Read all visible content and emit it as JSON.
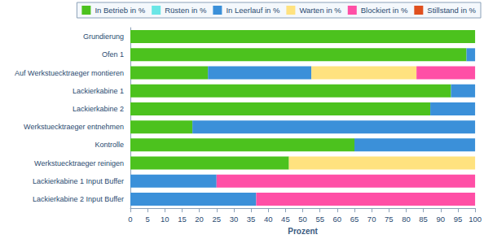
{
  "chart_data": {
    "type": "bar",
    "orientation": "horizontal",
    "stacked": true,
    "grid": false,
    "legend": "top",
    "xlabel": "Prozent",
    "xlim": [
      0,
      100
    ],
    "xticks": [
      0,
      5,
      10,
      15,
      20,
      25,
      30,
      35,
      40,
      45,
      50,
      55,
      60,
      65,
      70,
      75,
      80,
      85,
      90,
      95,
      100
    ],
    "categories": [
      "Grundierung",
      "Ofen 1",
      "Auf Werkstuecktraeger montieren",
      "Lackierkabine 1",
      "Lackierkabine 2",
      "Werkstuecktraeger entnehmen",
      "Kontrolle",
      "Werkstuecktraeger reinigen",
      "Lackierkabine 1 Input Buffer",
      "Lackierkabine 2 Input Buffer"
    ],
    "series": [
      {
        "name": "In Betrieb in %",
        "color": "#4cc21e",
        "values": [
          100,
          97.5,
          22.5,
          93,
          87,
          18,
          65,
          46,
          0,
          0
        ]
      },
      {
        "name": "Rüsten in %",
        "color": "#6ae6e6",
        "values": [
          0,
          0,
          0,
          0,
          0,
          0,
          0,
          0,
          0,
          0
        ]
      },
      {
        "name": "In Leerlauf in %",
        "color": "#3b90d9",
        "values": [
          0,
          2.5,
          30,
          7,
          13,
          82,
          35,
          0,
          25,
          36.5
        ]
      },
      {
        "name": "Warten in %",
        "color": "#ffe27f",
        "values": [
          0,
          0,
          30.5,
          0,
          0,
          0,
          0,
          54,
          0,
          0
        ]
      },
      {
        "name": "Blockiert in %",
        "color": "#ff4fa6",
        "values": [
          0,
          0,
          17,
          0,
          0,
          0,
          0,
          0,
          75,
          63.5
        ]
      },
      {
        "name": "Stillstand in %",
        "color": "#e0501e",
        "values": [
          0,
          0,
          0,
          0,
          0,
          0,
          0,
          0,
          0,
          0
        ]
      }
    ]
  }
}
